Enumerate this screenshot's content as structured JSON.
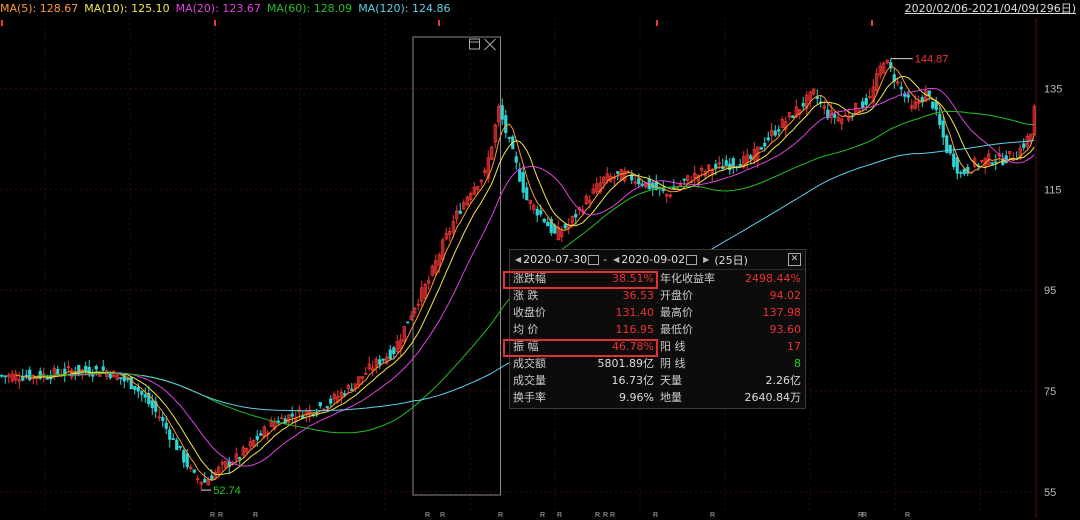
{
  "ma_legend": [
    {
      "label": "MA(5): 128.67",
      "color": "#ff9a2e"
    },
    {
      "label": "MA(10): 125.10",
      "color": "#f2e64a"
    },
    {
      "label": "MA(20): 123.67",
      "color": "#e040e0"
    },
    {
      "label": "MA(60): 128.09",
      "color": "#22c022"
    },
    {
      "label": "MA(120): 124.86",
      "color": "#5fd0e8"
    }
  ],
  "date_range_label": "2020/02/06-2021/04/09(296日)",
  "colors": {
    "up": "#f23535",
    "down": "#2fd5d5",
    "grid": "#3a0a0a",
    "axis_text": "#bbbbbb"
  },
  "chart_data": {
    "type": "candlestick",
    "y_ticks": [
      55,
      75,
      95,
      115,
      135
    ],
    "ylim": [
      51,
      149
    ],
    "n_bars": 296,
    "annotations": {
      "high_label": "144.87",
      "low_label": "52.74"
    },
    "right_info_label": "R",
    "selection": {
      "start_index": 118,
      "end_index": 142
    },
    "key_close": [
      [
        0,
        78
      ],
      [
        10,
        78
      ],
      [
        20,
        79
      ],
      [
        30,
        79
      ],
      [
        38,
        76
      ],
      [
        45,
        70
      ],
      [
        50,
        64
      ],
      [
        55,
        58
      ],
      [
        58,
        57
      ],
      [
        63,
        60
      ],
      [
        68,
        62
      ],
      [
        72,
        65
      ],
      [
        78,
        69
      ],
      [
        82,
        70
      ],
      [
        88,
        71
      ],
      [
        94,
        73
      ],
      [
        100,
        76
      ],
      [
        106,
        80
      ],
      [
        112,
        83
      ],
      [
        116,
        89
      ],
      [
        118,
        92
      ],
      [
        122,
        97
      ],
      [
        126,
        104
      ],
      [
        130,
        110
      ],
      [
        134,
        115
      ],
      [
        138,
        118
      ],
      [
        140,
        124
      ],
      [
        142,
        131
      ],
      [
        146,
        122
      ],
      [
        150,
        113
      ],
      [
        154,
        110
      ],
      [
        158,
        106
      ],
      [
        162,
        108
      ],
      [
        166,
        112
      ],
      [
        172,
        117
      ],
      [
        178,
        118
      ],
      [
        184,
        116
      ],
      [
        190,
        114
      ],
      [
        196,
        117
      ],
      [
        202,
        119
      ],
      [
        208,
        120
      ],
      [
        214,
        121
      ],
      [
        220,
        126
      ],
      [
        226,
        130
      ],
      [
        232,
        134
      ],
      [
        236,
        130
      ],
      [
        240,
        129
      ],
      [
        244,
        131
      ],
      [
        248,
        133
      ],
      [
        252,
        141
      ],
      [
        256,
        136
      ],
      [
        260,
        131
      ],
      [
        264,
        134
      ],
      [
        266,
        132
      ],
      [
        270,
        123
      ],
      [
        274,
        118
      ],
      [
        278,
        120
      ],
      [
        282,
        121
      ],
      [
        286,
        121
      ],
      [
        290,
        122
      ],
      [
        294,
        126
      ],
      [
        295,
        131
      ]
    ],
    "ma5_end": 128.67,
    "ma10_end": 125.1,
    "ma20_end": 123.67,
    "ma60_end": 128.09,
    "ma120_end": 124.86
  },
  "stats_panel": {
    "start_date": "2020-07-30",
    "separator": "-",
    "end_date": "2020-09-02",
    "days": "(25日)",
    "rows": [
      {
        "l1": "涨跌幅",
        "v1": "38.51%",
        "l2": "年化收益率",
        "v2": "2498.44%",
        "c1": "red",
        "c2": "red"
      },
      {
        "l1": "涨  跌",
        "v1": "36.53",
        "l2": "开盘价",
        "v2": "94.02",
        "c1": "red",
        "c2": "red"
      },
      {
        "l1": "收盘价",
        "v1": "131.40",
        "l2": "最高价",
        "v2": "137.98",
        "c1": "red",
        "c2": "red"
      },
      {
        "l1": "均  价",
        "v1": "116.95",
        "l2": "最低价",
        "v2": "93.60",
        "c1": "red",
        "c2": "red"
      },
      {
        "l1": "振  幅",
        "v1": "46.78%",
        "l2": "阳  线",
        "v2": "17",
        "c1": "red",
        "c2": "red"
      },
      {
        "l1": "成交额",
        "v1": "5801.89亿",
        "l2": "阴  线",
        "v2": "8",
        "c1": "wht",
        "c2": "grn"
      },
      {
        "l1": "成交量",
        "v1": "16.73亿",
        "l2": "天量",
        "v2": "2.26亿",
        "c1": "wht",
        "c2": "wht"
      },
      {
        "l1": "换手率",
        "v1": "9.96%",
        "l2": "地量",
        "v2": "2640.84万",
        "c1": "wht",
        "c2": "wht"
      }
    ]
  }
}
